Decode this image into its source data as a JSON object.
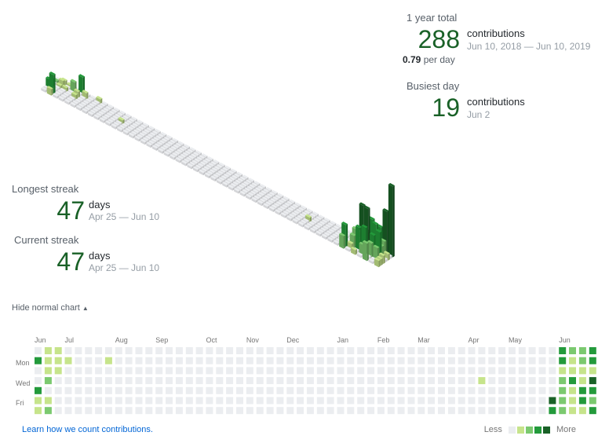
{
  "year_total": {
    "label": "1 year total",
    "count": "288",
    "unit": "contributions",
    "range": "Jun 10, 2018 — Jun 10, 2019",
    "per_day_value": "0.79",
    "per_day_suffix": "per day"
  },
  "busiest_day": {
    "label": "Busiest day",
    "count": "19",
    "unit": "contributions",
    "date": "Jun 2"
  },
  "longest_streak": {
    "label": "Longest streak",
    "count": "47",
    "unit": "days",
    "range": "Apr 25 — Jun 10"
  },
  "current_streak": {
    "label": "Current streak",
    "count": "47",
    "unit": "days",
    "range": "Apr 25 — Jun 10"
  },
  "toggle": {
    "label": "Hide normal chart",
    "caret": "▲"
  },
  "calendar": {
    "months": [
      "Jun",
      "Jul",
      "Aug",
      "Sep",
      "Oct",
      "Nov",
      "Dec",
      "Jan",
      "Feb",
      "Mar",
      "Apr",
      "May",
      "Jun"
    ],
    "days": [
      "Mon",
      "Wed",
      "Fri"
    ],
    "levels": [
      [
        0,
        1,
        1,
        0,
        0,
        0,
        0,
        0,
        0,
        0,
        0,
        0,
        0,
        0,
        0,
        0,
        0,
        0,
        0,
        0,
        0,
        0,
        0,
        0,
        0,
        0,
        0,
        0,
        0,
        0,
        0,
        0,
        0,
        0,
        0,
        0,
        0,
        0,
        0,
        0,
        0,
        0,
        0,
        0,
        0,
        0,
        0,
        0,
        0,
        0,
        0,
        0,
        3,
        2,
        2,
        3,
        3,
        4
      ],
      [
        3,
        1,
        1,
        1,
        0,
        0,
        0,
        1,
        0,
        0,
        0,
        0,
        0,
        0,
        0,
        0,
        0,
        0,
        0,
        0,
        0,
        0,
        0,
        0,
        0,
        0,
        0,
        0,
        0,
        0,
        0,
        0,
        0,
        0,
        0,
        0,
        0,
        0,
        0,
        0,
        0,
        0,
        0,
        0,
        0,
        0,
        0,
        0,
        0,
        0,
        0,
        0,
        3,
        1,
        2,
        3,
        2,
        1
      ],
      [
        0,
        1,
        1,
        0,
        0,
        0,
        0,
        0,
        0,
        0,
        0,
        0,
        0,
        0,
        0,
        0,
        0,
        0,
        0,
        0,
        0,
        0,
        0,
        0,
        0,
        0,
        0,
        0,
        0,
        0,
        0,
        0,
        0,
        0,
        0,
        0,
        0,
        0,
        0,
        0,
        0,
        0,
        0,
        0,
        0,
        0,
        0,
        0,
        0,
        0,
        0,
        0,
        1,
        1,
        1,
        1,
        2,
        1
      ],
      [
        0,
        2,
        0,
        0,
        0,
        0,
        0,
        0,
        0,
        0,
        0,
        0,
        0,
        0,
        0,
        0,
        0,
        0,
        0,
        0,
        0,
        0,
        0,
        0,
        0,
        0,
        0,
        0,
        0,
        0,
        0,
        0,
        0,
        0,
        0,
        0,
        0,
        0,
        0,
        0,
        0,
        0,
        0,
        0,
        1,
        0,
        0,
        0,
        0,
        0,
        0,
        0,
        2,
        3,
        1,
        4,
        3,
        3
      ],
      [
        3,
        0,
        0,
        0,
        0,
        0,
        0,
        0,
        0,
        0,
        0,
        0,
        0,
        0,
        0,
        0,
        0,
        0,
        0,
        0,
        0,
        0,
        0,
        0,
        0,
        0,
        0,
        0,
        0,
        0,
        0,
        0,
        0,
        0,
        0,
        0,
        0,
        0,
        0,
        0,
        0,
        0,
        0,
        0,
        0,
        0,
        0,
        0,
        0,
        0,
        0,
        0,
        2,
        1,
        3,
        3,
        2,
        1
      ],
      [
        1,
        1,
        0,
        0,
        0,
        0,
        0,
        0,
        0,
        0,
        0,
        0,
        0,
        0,
        0,
        0,
        0,
        0,
        0,
        0,
        0,
        0,
        0,
        0,
        0,
        0,
        0,
        0,
        0,
        0,
        0,
        0,
        0,
        0,
        0,
        0,
        0,
        0,
        0,
        0,
        0,
        0,
        0,
        0,
        0,
        0,
        0,
        0,
        0,
        0,
        0,
        4,
        2,
        1,
        3,
        2,
        3,
        3
      ],
      [
        1,
        2,
        0,
        0,
        0,
        0,
        0,
        0,
        0,
        0,
        0,
        0,
        0,
        0,
        0,
        0,
        0,
        0,
        0,
        0,
        0,
        0,
        0,
        0,
        0,
        0,
        0,
        0,
        0,
        0,
        0,
        0,
        0,
        0,
        0,
        0,
        0,
        0,
        0,
        0,
        0,
        0,
        0,
        0,
        0,
        0,
        0,
        0,
        0,
        0,
        0,
        3,
        2,
        1,
        1,
        3,
        2,
        4
      ]
    ],
    "last_col_rows": 7
  },
  "iso_bars": [
    {
      "col": 0,
      "row": 1,
      "h": 4,
      "level": 2
    },
    {
      "col": 0,
      "row": 3,
      "h": 10,
      "level": 3
    },
    {
      "col": 0,
      "row": 4,
      "h": 12,
      "level": 3
    },
    {
      "col": 1,
      "row": 0,
      "h": 6,
      "level": 1
    },
    {
      "col": 1,
      "row": 1,
      "h": 8,
      "level": 1
    },
    {
      "col": 1,
      "row": 2,
      "h": 4,
      "level": 1
    },
    {
      "col": 1,
      "row": 5,
      "h": 24,
      "level": 3
    },
    {
      "col": 1,
      "row": 6,
      "h": 8,
      "level": 1
    },
    {
      "col": 2,
      "row": 0,
      "h": 4,
      "level": 1
    },
    {
      "col": 2,
      "row": 2,
      "h": 5,
      "level": 1
    },
    {
      "col": 3,
      "row": 1,
      "h": 14,
      "level": 2
    },
    {
      "col": 4,
      "row": 0,
      "h": 22,
      "level": 3
    },
    {
      "col": 4,
      "row": 2,
      "h": 8,
      "level": 1
    },
    {
      "col": 4,
      "row": 3,
      "h": 6,
      "level": 1
    },
    {
      "col": 5,
      "row": 1,
      "h": 8,
      "level": 1
    },
    {
      "col": 7,
      "row": 0,
      "h": 6,
      "level": 1
    },
    {
      "col": 12,
      "row": 3,
      "h": 5,
      "level": 1
    },
    {
      "col": 44,
      "row": 3,
      "h": 6,
      "level": 1
    },
    {
      "col": 51,
      "row": 5,
      "h": 28,
      "level": 3
    },
    {
      "col": 51,
      "row": 6,
      "h": 16,
      "level": 2
    },
    {
      "col": 52,
      "row": 0,
      "h": 46,
      "level": 4
    },
    {
      "col": 52,
      "row": 1,
      "h": 14,
      "level": 2
    },
    {
      "col": 52,
      "row": 2,
      "h": 8,
      "level": 1
    },
    {
      "col": 52,
      "row": 3,
      "h": 22,
      "level": 2
    },
    {
      "col": 52,
      "row": 4,
      "h": 16,
      "level": 2
    },
    {
      "col": 52,
      "row": 5,
      "h": 8,
      "level": 1
    },
    {
      "col": 53,
      "row": 0,
      "h": 16,
      "level": 2
    },
    {
      "col": 53,
      "row": 1,
      "h": 8,
      "level": 1
    },
    {
      "col": 53,
      "row": 2,
      "h": 12,
      "level": 2
    },
    {
      "col": 53,
      "row": 3,
      "h": 6,
      "level": 1
    },
    {
      "col": 53,
      "row": 4,
      "h": 30,
      "level": 3
    },
    {
      "col": 53,
      "row": 6,
      "h": 6,
      "level": 1
    },
    {
      "col": 54,
      "row": 0,
      "h": 22,
      "level": 2
    },
    {
      "col": 54,
      "row": 1,
      "h": 38,
      "level": 3
    },
    {
      "col": 54,
      "row": 2,
      "h": 6,
      "level": 1
    },
    {
      "col": 54,
      "row": 3,
      "h": 56,
      "level": 4
    },
    {
      "col": 54,
      "row": 4,
      "h": 34,
      "level": 3
    },
    {
      "col": 54,
      "row": 5,
      "h": 14,
      "level": 2
    },
    {
      "col": 55,
      "row": 0,
      "h": 30,
      "level": 3
    },
    {
      "col": 55,
      "row": 1,
      "h": 20,
      "level": 2
    },
    {
      "col": 55,
      "row": 2,
      "h": 38,
      "level": 3
    },
    {
      "col": 55,
      "row": 3,
      "h": 26,
      "level": 3
    },
    {
      "col": 55,
      "row": 4,
      "h": 18,
      "level": 2
    },
    {
      "col": 55,
      "row": 6,
      "h": 22,
      "level": 2
    },
    {
      "col": 56,
      "row": 0,
      "h": 54,
      "level": 4
    },
    {
      "col": 56,
      "row": 1,
      "h": 18,
      "level": 2
    },
    {
      "col": 56,
      "row": 2,
      "h": 14,
      "level": 2
    },
    {
      "col": 56,
      "row": 3,
      "h": 34,
      "level": 3
    },
    {
      "col": 56,
      "row": 4,
      "h": 16,
      "level": 2
    },
    {
      "col": 57,
      "row": 0,
      "h": 90,
      "level": 4
    },
    {
      "col": 57,
      "row": 2,
      "h": 8,
      "level": 1
    },
    {
      "col": 57,
      "row": 4,
      "h": 10,
      "level": 1
    },
    {
      "col": 57,
      "row": 5,
      "h": 8,
      "level": 1
    },
    {
      "col": 57,
      "row": 6,
      "h": 8,
      "level": 1
    }
  ],
  "colors": {
    "l0": "#ebedf0",
    "l1": "#c6e48b",
    "l2": "#7bc96f",
    "l3": "#239a3b",
    "l4": "#196127",
    "accent": "#196127",
    "link": "#0366d6"
  },
  "legend": {
    "less": "Less",
    "more": "More"
  },
  "learn_link": "Learn how we count contributions."
}
